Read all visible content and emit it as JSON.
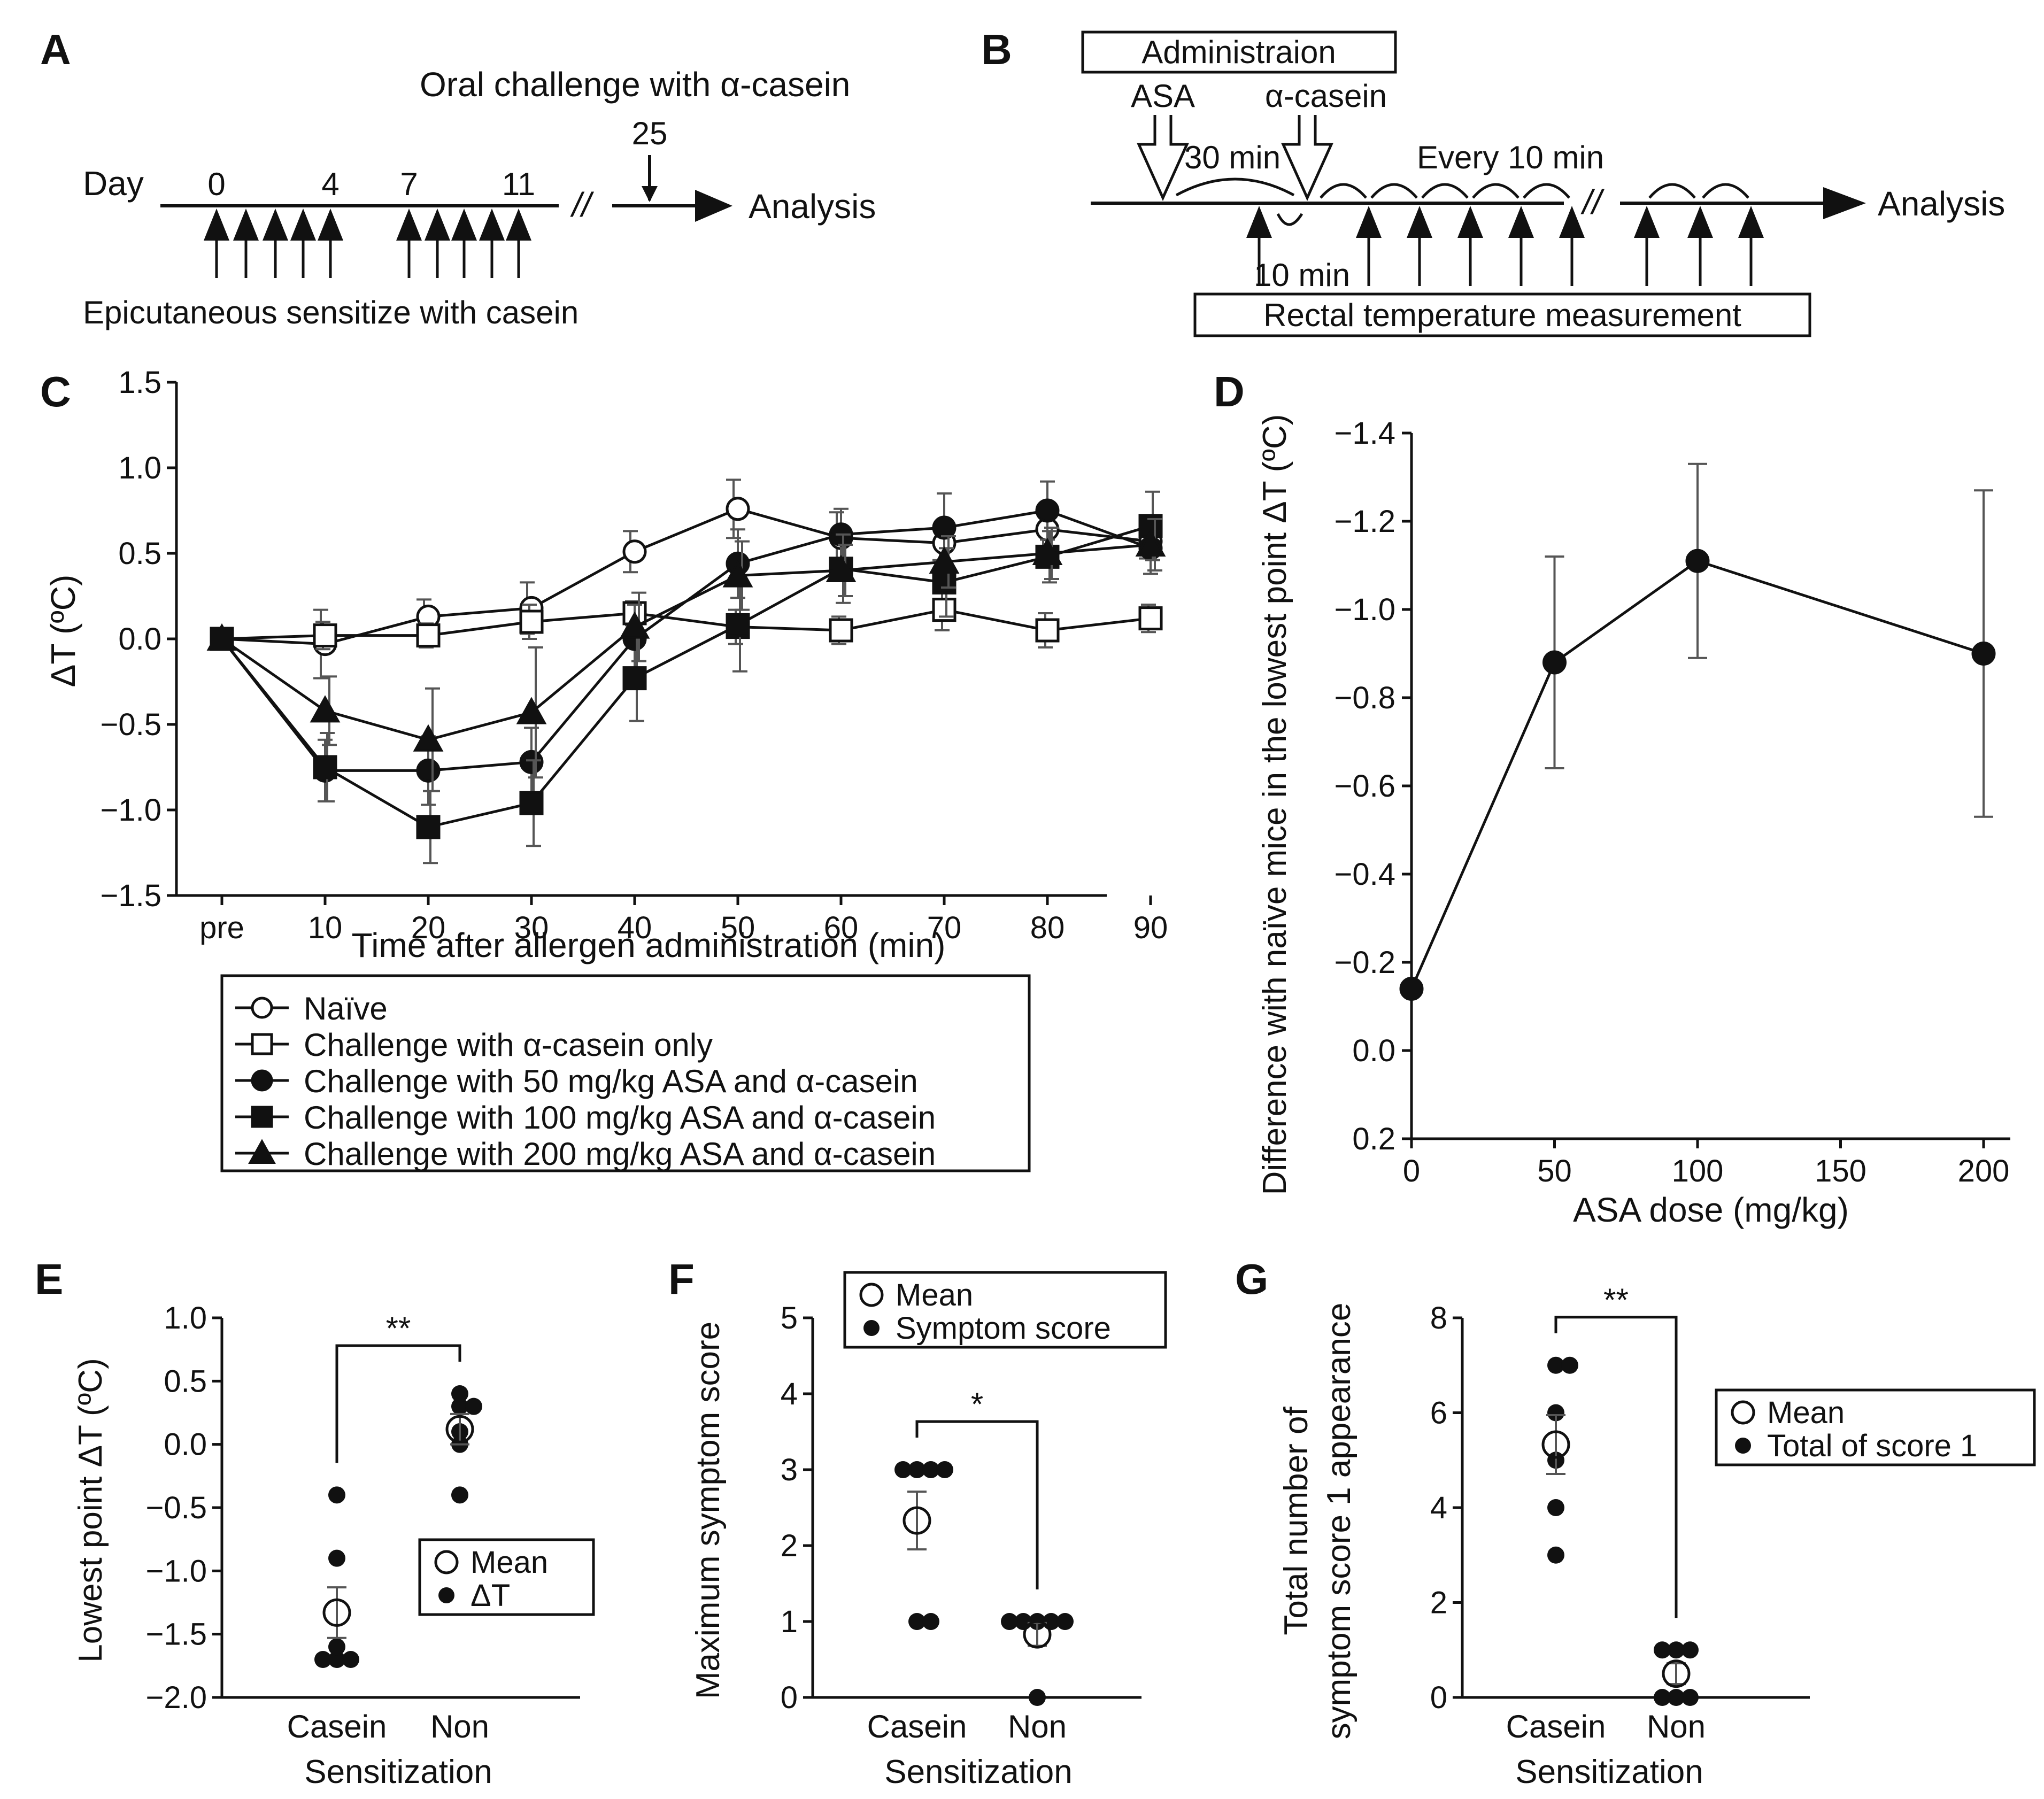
{
  "panel_labels": {
    "a": "A",
    "b": "B",
    "c": "C",
    "d": "D",
    "e": "E",
    "f": "F",
    "g": "G"
  },
  "panel_a": {
    "oral_challenge": "Oral challenge with α-casein",
    "day_label": "Day",
    "day_ticks": [
      "0",
      "4",
      "7",
      "11"
    ],
    "challenge_day": "25",
    "break_mark": "//",
    "analysis": "Analysis",
    "sensitize": "Epicutaneous sensitize with casein"
  },
  "panel_b": {
    "administration": "Administraion",
    "asa": "ASA",
    "casein": "α-casein",
    "interval_30": "30 min",
    "every_10": "Every 10 min",
    "interval_10": "10 min",
    "break_mark": "//",
    "analysis": "Analysis",
    "rectal": "Rectal temperature measurement"
  },
  "colors": {
    "ink": "#111111",
    "error_bar": "#555555",
    "axis": "#111111"
  },
  "chart_data": [
    {
      "id": "C",
      "type": "line",
      "xlabel": "Time after allergen administration (min)",
      "ylabel": "ΔT (ºC)",
      "categories": [
        "pre",
        "10",
        "20",
        "30",
        "40",
        "50",
        "60",
        "70",
        "80",
        "90"
      ],
      "ylim": [
        -1.5,
        1.5
      ],
      "yticks": [
        "1.5",
        "1.0",
        "0.5",
        "0.0",
        "−0.5",
        "−1.0",
        "−1.5"
      ],
      "series": [
        {
          "name": "Naïve",
          "marker": "circle-open",
          "values": [
            0,
            -0.03,
            0.13,
            0.18,
            0.51,
            0.76,
            0.59,
            0.56,
            0.64,
            0.57
          ],
          "errors": [
            0,
            0.2,
            0.1,
            0.15,
            0.12,
            0.17,
            0.15,
            0.1,
            0.12,
            0.1
          ]
        },
        {
          "name": "Challenge with α-casein only",
          "marker": "square-open",
          "values": [
            0,
            0.02,
            0.02,
            0.1,
            0.15,
            0.07,
            0.05,
            0.17,
            0.05,
            0.12
          ],
          "errors": [
            0,
            0.08,
            0.07,
            0.1,
            0.07,
            0.1,
            0.08,
            0.12,
            0.1,
            0.08
          ]
        },
        {
          "name": "Challenge with 50 mg/kg ASA and α-casein",
          "marker": "circle-filled",
          "values": [
            0,
            -0.77,
            -0.77,
            -0.72,
            0.0,
            0.44,
            0.61,
            0.65,
            0.75,
            0.53
          ],
          "errors": [
            0,
            0.18,
            0.2,
            0.2,
            0.2,
            0.2,
            0.15,
            0.2,
            0.17,
            0.15
          ]
        },
        {
          "name": "Challenge with 100 mg/kg ASA and α-casein",
          "marker": "square-filled",
          "values": [
            0,
            -0.75,
            -1.1,
            -0.96,
            -0.23,
            0.08,
            0.41,
            0.33,
            0.48,
            0.66
          ],
          "errors": [
            0,
            0.2,
            0.21,
            0.25,
            0.25,
            0.27,
            0.2,
            0.2,
            0.15,
            0.2
          ]
        },
        {
          "name": "Challenge with 200 mg/kg ASA and α-casein",
          "marker": "triangle-filled",
          "values": [
            0,
            -0.42,
            -0.59,
            -0.43,
            0.07,
            0.37,
            0.4,
            0.45,
            0.5,
            0.55
          ],
          "errors": [
            0,
            0.2,
            0.3,
            0.38,
            0.2,
            0.2,
            0.15,
            0.15,
            0.15,
            0.15
          ]
        }
      ],
      "legend": "below"
    },
    {
      "id": "D",
      "type": "line",
      "xlabel": "ASA dose (mg/kg)",
      "ylabel": "Difference with naïve mice in the lowest point ΔT (ºC)",
      "xlim": [
        0,
        200
      ],
      "xticks": [
        "0",
        "50",
        "100",
        "150",
        "200"
      ],
      "ylim": [
        0.2,
        -1.4
      ],
      "yticks": [
        "−1.4",
        "−1.2",
        "−1.0",
        "−0.8",
        "−0.6",
        "−0.4",
        "−0.2",
        "0.0",
        "0.2"
      ],
      "x": [
        0,
        50,
        100,
        200
      ],
      "values": [
        -0.14,
        -0.88,
        -1.11,
        -0.9
      ],
      "errors": [
        0,
        0.24,
        0.22,
        0.37
      ]
    },
    {
      "id": "E",
      "type": "scatter",
      "xlabel": "Sensitization",
      "ylabel": "Lowest point ΔT (ºC)",
      "categories": [
        "Casein",
        "Non"
      ],
      "ylim": [
        -2.0,
        1.0
      ],
      "yticks": [
        "1.0",
        "0.5",
        "0.0",
        "−0.5",
        "−1.0",
        "−1.5",
        "−2.0"
      ],
      "points": [
        [
          -1.7,
          -1.7,
          -1.7,
          -1.6,
          -0.9,
          -0.4
        ],
        [
          0.3,
          0.3,
          0.1,
          0.0,
          0.4,
          -0.4
        ]
      ],
      "means": [
        -1.33,
        0.12
      ],
      "errors": [
        0.2,
        0.12
      ],
      "significance": "**",
      "legend": {
        "mean": "Mean",
        "points": "ΔT"
      }
    },
    {
      "id": "F",
      "type": "scatter",
      "xlabel": "Sensitization",
      "ylabel": "Maximum symptom score",
      "categories": [
        "Casein",
        "Non"
      ],
      "ylim": [
        0,
        5
      ],
      "yticks": [
        "5",
        "4",
        "3",
        "2",
        "1",
        "0"
      ],
      "points": [
        [
          3,
          3,
          3,
          3,
          1,
          1
        ],
        [
          1,
          1,
          1,
          1,
          1,
          0
        ]
      ],
      "means": [
        2.33,
        0.83
      ],
      "errors": [
        0.38,
        0.15
      ],
      "significance": "*",
      "legend": {
        "mean": "Mean",
        "points": "Symptom score"
      }
    },
    {
      "id": "G",
      "type": "scatter",
      "xlabel": "Sensitization",
      "ylabel": "Total number of symptom score 1 appearance",
      "categories": [
        "Casein",
        "Non"
      ],
      "ylim": [
        0,
        8
      ],
      "yticks": [
        "8",
        "6",
        "4",
        "2",
        "0"
      ],
      "points": [
        [
          7,
          7,
          5,
          6,
          4,
          3
        ],
        [
          1,
          1,
          1,
          0,
          0,
          0
        ]
      ],
      "means": [
        5.33,
        0.5
      ],
      "errors": [
        0.62,
        0.22
      ],
      "significance": "**",
      "legend": {
        "mean": "Mean",
        "points": "Total of score 1"
      }
    }
  ]
}
